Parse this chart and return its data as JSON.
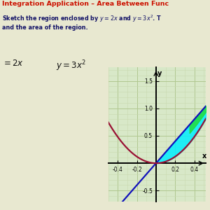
{
  "bg_color": "#e8e8d0",
  "graph_bg": "#d8e8c8",
  "grid_major_color": "#b0c890",
  "grid_minor_color": "#c8d8b0",
  "xlim": [
    -0.5,
    0.52
  ],
  "ylim": [
    -0.65,
    1.75
  ],
  "xticks": [
    -0.4,
    -0.2,
    0.2,
    0.4
  ],
  "yticks": [
    -0.5,
    0.5,
    1.0,
    1.5
  ],
  "linear_color": "#1111bb",
  "quadratic_color": "#991133",
  "fill_cyan": "#00eeff",
  "fill_green": "#22dd44",
  "dot_yellow": "#ffff00",
  "title_color": "#cc1100",
  "subtitle_color": "#111166",
  "label_color": "#111111"
}
